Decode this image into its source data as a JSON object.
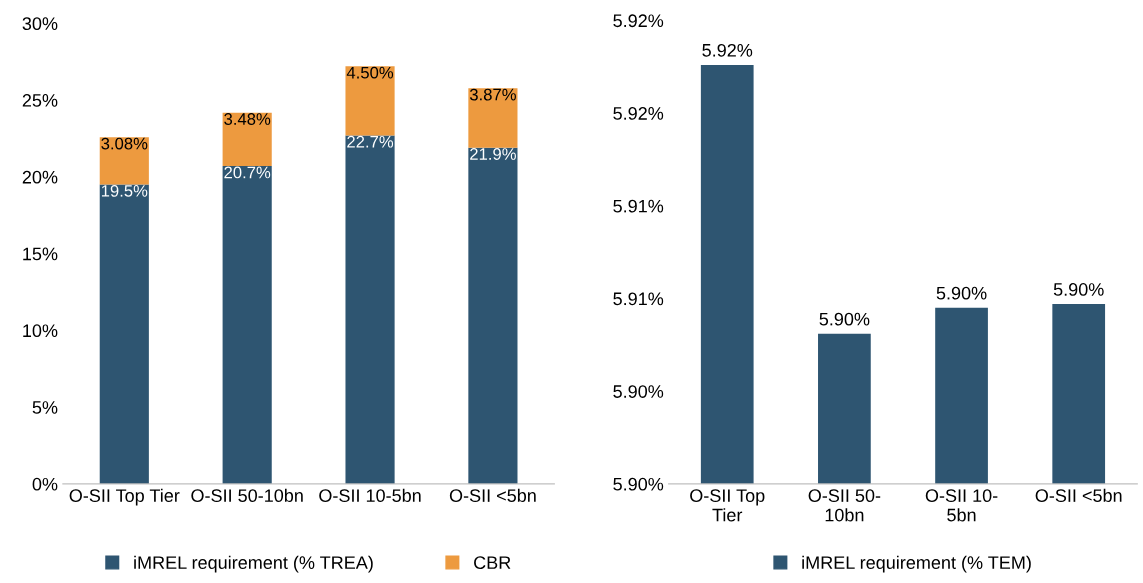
{
  "chart_data": [
    {
      "type": "bar",
      "stacked": true,
      "categories": [
        "O-SII Top Tier",
        "O-SII 50-10bn",
        "O-SII 10-5bn",
        "O-SII <5bn"
      ],
      "series": [
        {
          "name": "iMREL requirement (% TREA)",
          "color": "#2e5571",
          "values": [
            19.5,
            20.7,
            22.7,
            21.9
          ],
          "value_labels": [
            "19.5%",
            "20.7%",
            "22.7%",
            "21.9%"
          ]
        },
        {
          "name": "CBR",
          "color": "#ed9a3f",
          "values": [
            3.08,
            3.48,
            4.5,
            3.87
          ],
          "value_labels": [
            "3.08%",
            "3.48%",
            "4.50%",
            "3.87%"
          ]
        }
      ],
      "ylim": [
        0,
        30
      ],
      "yticks": [
        {
          "value": 0,
          "label": "0%"
        },
        {
          "value": 5,
          "label": "5%"
        },
        {
          "value": 10,
          "label": "10%"
        },
        {
          "value": 15,
          "label": "15%"
        },
        {
          "value": 20,
          "label": "20%"
        },
        {
          "value": 25,
          "label": "25%"
        },
        {
          "value": 30,
          "label": "30%"
        }
      ],
      "grid": false,
      "legend": "bottom"
    },
    {
      "type": "bar",
      "categories": [
        "O-SII Top Tier",
        "O-SII 50-10bn",
        "O-SII 10-5bn",
        "O-SII <5bn"
      ],
      "series": [
        {
          "name": "iMREL requirement (% TEM)",
          "color": "#2e5571",
          "values": [
            5.9176,
            5.9031,
            5.9045,
            5.9047
          ],
          "value_labels": [
            "5.92%",
            "5.90%",
            "5.90%",
            "5.90%"
          ]
        }
      ],
      "ylim": [
        5.895,
        5.92
      ],
      "yticks": [
        {
          "value": 5.895,
          "label": "5.90%"
        },
        {
          "value": 5.9,
          "label": "5.90%"
        },
        {
          "value": 5.905,
          "label": "5.91%"
        },
        {
          "value": 5.91,
          "label": "5.91%"
        },
        {
          "value": 5.915,
          "label": "5.92%"
        },
        {
          "value": 5.92,
          "label": "5.92%"
        }
      ],
      "grid": false,
      "legend": "bottom"
    }
  ]
}
